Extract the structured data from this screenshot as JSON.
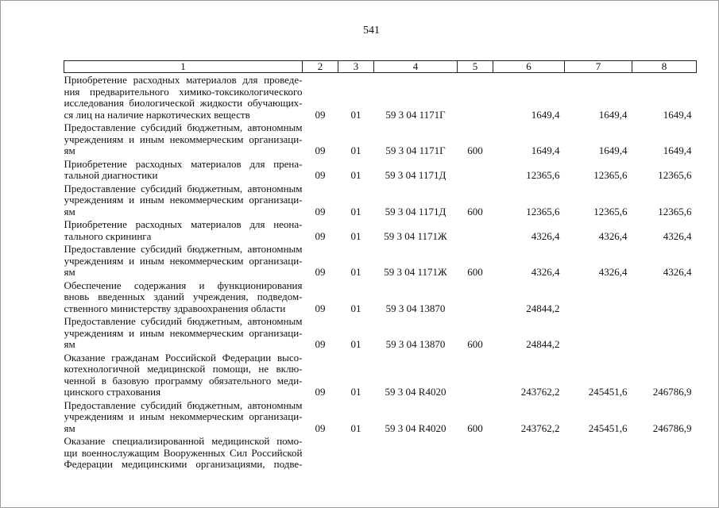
{
  "page_number": "541",
  "header": [
    "1",
    "2",
    "3",
    "4",
    "5",
    "6",
    "7",
    "8"
  ],
  "rows": [
    {
      "lines": [
        "Приобретение расходных материалов для проведе-",
        "ния предварительного химико-токсикологического",
        "исследования биологической жидкости обучающих-",
        "ся лиц на наличие наркотических веществ"
      ],
      "c2": "09",
      "c3": "01",
      "c4": "59 3 04 1171Г",
      "c5": "",
      "c6": "1649,4",
      "c7": "1649,4",
      "c8": "1649,4"
    },
    {
      "lines": [
        "Предоставление субсидий бюджетным, автономным",
        "учреждениям и иным некоммерческим организаци-",
        "ям"
      ],
      "c2": "09",
      "c3": "01",
      "c4": "59 3 04 1171Г",
      "c5": "600",
      "c6": "1649,4",
      "c7": "1649,4",
      "c8": "1649,4"
    },
    {
      "lines": [
        "Приобретение расходных материалов для прена-",
        "тальной диагностики"
      ],
      "c2": "09",
      "c3": "01",
      "c4": "59 3 04 1171Д",
      "c5": "",
      "c6": "12365,6",
      "c7": "12365,6",
      "c8": "12365,6"
    },
    {
      "lines": [
        "Предоставление субсидий бюджетным, автономным",
        "учреждениям и иным некоммерческим организаци-",
        "ям"
      ],
      "c2": "09",
      "c3": "01",
      "c4": "59 3 04 1171Д",
      "c5": "600",
      "c6": "12365,6",
      "c7": "12365,6",
      "c8": "12365,6"
    },
    {
      "lines": [
        "Приобретение расходных материалов для неона-",
        "тального скрининга"
      ],
      "c2": "09",
      "c3": "01",
      "c4": "59 3 04 1171Ж",
      "c5": "",
      "c6": "4326,4",
      "c7": "4326,4",
      "c8": "4326,4"
    },
    {
      "lines": [
        "Предоставление субсидий бюджетным, автономным",
        "учреждениям и иным некоммерческим организаци-",
        "ям"
      ],
      "c2": "09",
      "c3": "01",
      "c4": "59 3 04 1171Ж",
      "c5": "600",
      "c6": "4326,4",
      "c7": "4326,4",
      "c8": "4326,4"
    },
    {
      "lines": [
        "Обеспечение содержания и функционирования",
        "вновь введенных зданий учреждения, подведом-",
        "ственного министерству здравоохранения области"
      ],
      "c2": "09",
      "c3": "01",
      "c4": "59 3 04 13870",
      "c5": "",
      "c6": "24844,2",
      "c7": "",
      "c8": ""
    },
    {
      "lines": [
        "Предоставление субсидий бюджетным, автономным",
        "учреждениям и иным некоммерческим организаци-",
        "ям"
      ],
      "c2": "09",
      "c3": "01",
      "c4": "59 3 04 13870",
      "c5": "600",
      "c6": "24844,2",
      "c7": "",
      "c8": ""
    },
    {
      "lines": [
        "Оказание гражданам Российской Федерации высо-",
        "котехнологичной медицинской помощи, не вклю-",
        "ченной в базовую программу обязательного меди-",
        "цинского страхования"
      ],
      "c2": "09",
      "c3": "01",
      "c4": "59 3 04 R4020",
      "c5": "",
      "c6": "243762,2",
      "c7": "245451,6",
      "c8": "246786,9"
    },
    {
      "lines": [
        "Предоставление субсидий бюджетным, автономным",
        "учреждениям и иным некоммерческим организаци-",
        "ям"
      ],
      "c2": "09",
      "c3": "01",
      "c4": "59 3 04 R4020",
      "c5": "600",
      "c6": "243762,2",
      "c7": "245451,6",
      "c8": "246786,9"
    },
    {
      "lines": [
        "Оказание специализированной медицинской помо-",
        "щи военнослужащим Вооруженных Сил Российской",
        "Федерации медицинскими организациями, подве-"
      ],
      "c2": "",
      "c3": "",
      "c4": "",
      "c5": "",
      "c6": "",
      "c7": "",
      "c8": ""
    }
  ]
}
